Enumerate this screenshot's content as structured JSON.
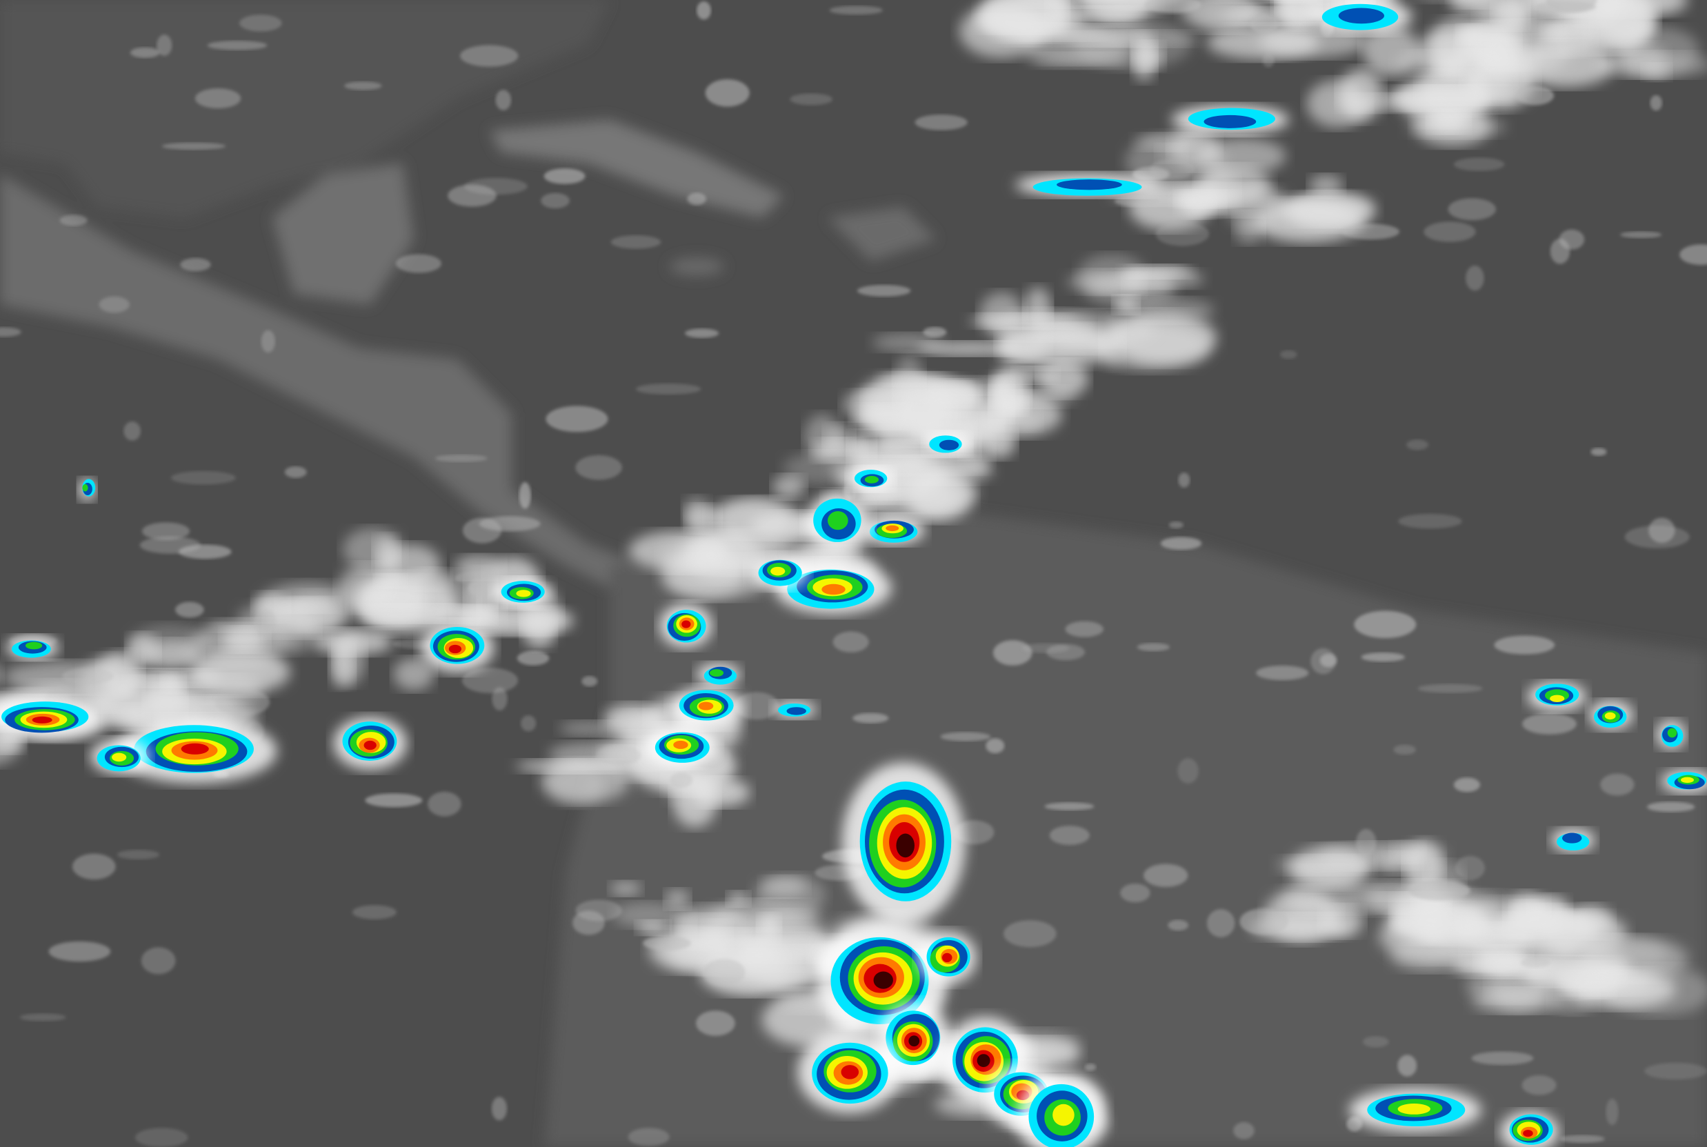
{
  "image": {
    "kind": "infrared satellite imagery",
    "colors": {
      "ocean": "#4a4a4a",
      "land": "#6a6a6a",
      "cloud": "#e6e6e6",
      "enhancement": [
        "#00e5ff",
        "#0050b4",
        "#1fd01f",
        "#f5f500",
        "#ff7a00",
        "#d80000",
        "#3a0000"
      ]
    }
  }
}
